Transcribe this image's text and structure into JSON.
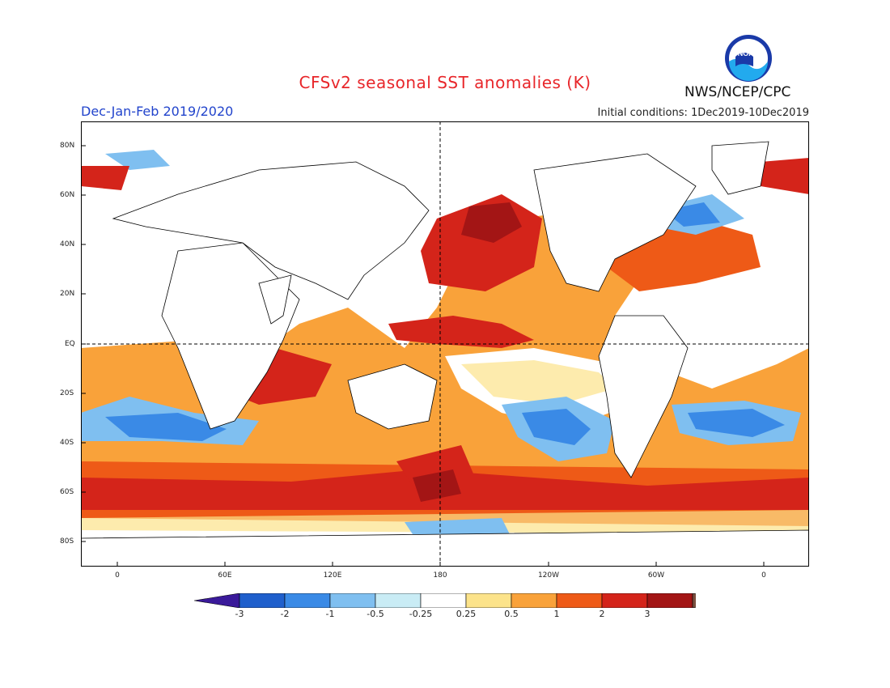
{
  "header": {
    "title": "CFSv2 seasonal SST anomalies (K)",
    "season": "Dec-Jan-Feb 2019/2020",
    "initial_conditions": "Initial conditions: 1Dec2019-10Dec2019",
    "agency": "NWS/NCEP/CPC",
    "logo_text": "NOAA"
  },
  "map": {
    "lat_labels": [
      "80N",
      "60N",
      "40N",
      "20N",
      "EQ",
      "20S",
      "40S",
      "60S",
      "80S"
    ],
    "lon_labels": [
      "0",
      "60E",
      "120E",
      "180",
      "120W",
      "60W",
      "0"
    ],
    "reference_lines": [
      "EQ",
      "180"
    ]
  },
  "colorbar": {
    "labels": [
      "-3",
      "-2",
      "-1",
      "-0.5",
      "-0.25",
      "0.25",
      "0.5",
      "1",
      "2",
      "3"
    ],
    "colors": [
      "#3a1a9a",
      "#1f5fcc",
      "#3a8ae6",
      "#7fbff0",
      "#c9ecf5",
      "#ffffff",
      "#fce38a",
      "#f9a23a",
      "#ee5a17",
      "#d4241a",
      "#a31515",
      "#7a5040"
    ]
  }
}
